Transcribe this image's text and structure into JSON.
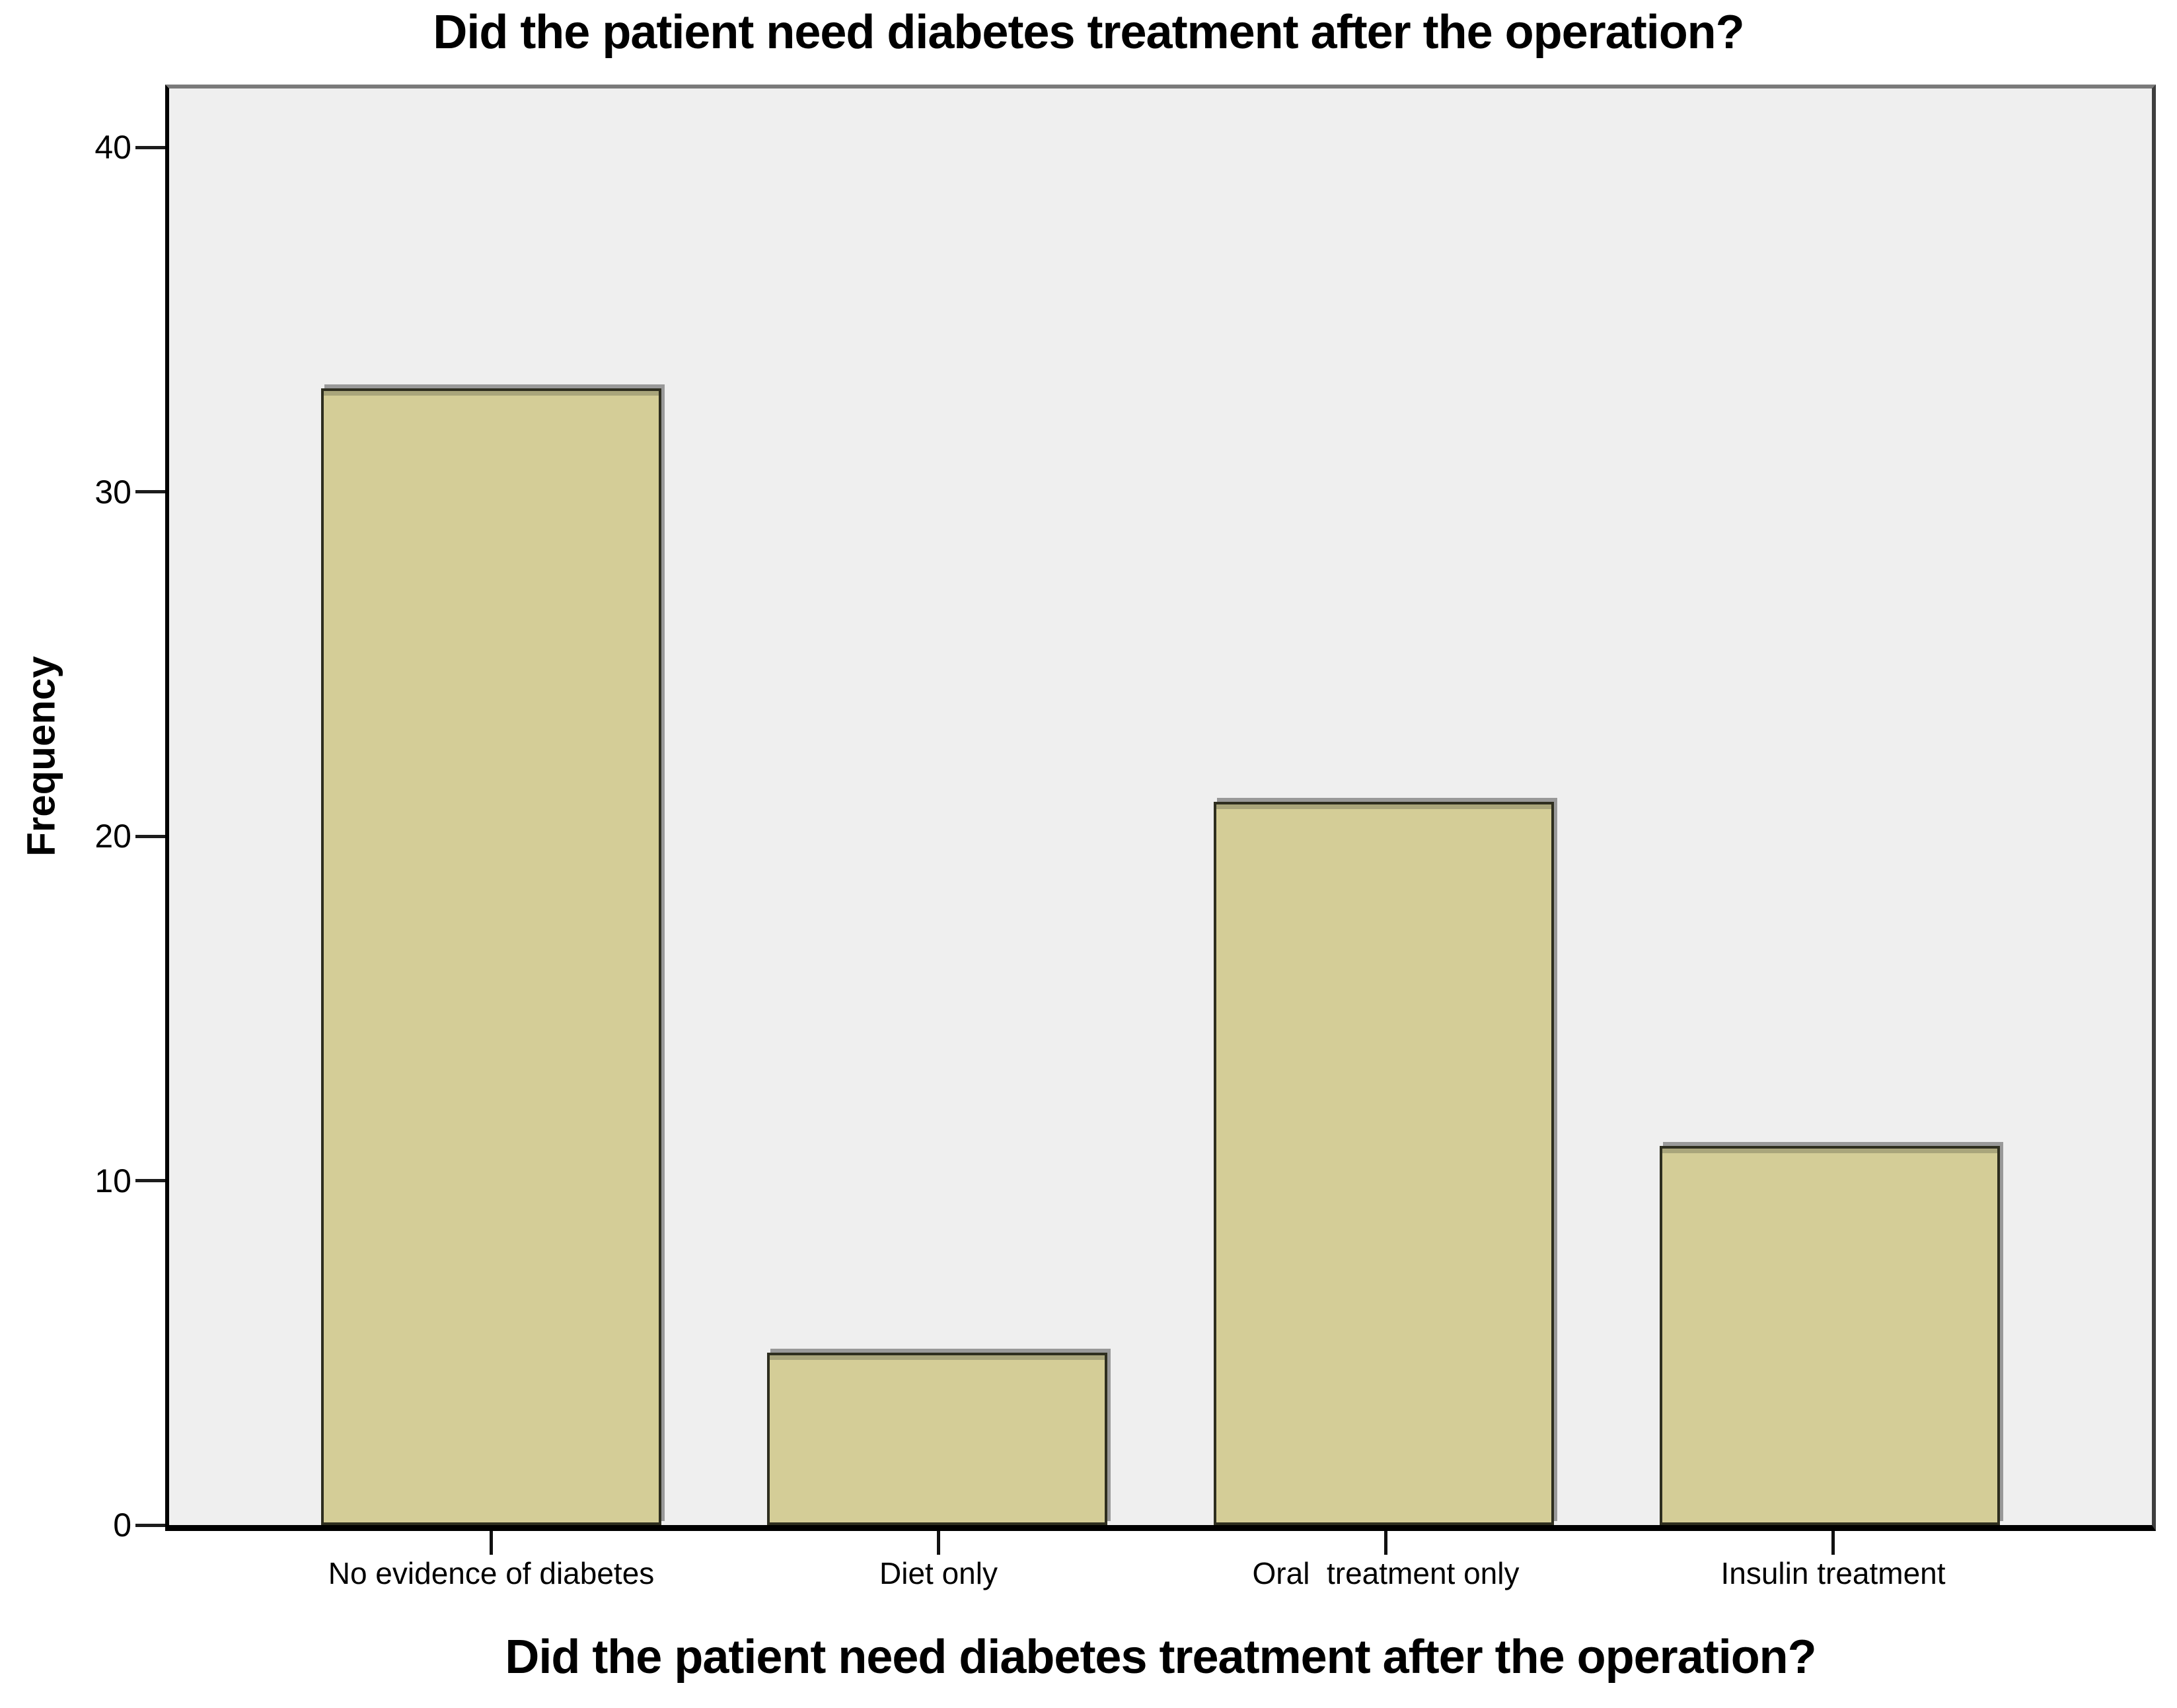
{
  "chart_data": {
    "type": "bar",
    "title": "Did the patient need diabetes treatment after the operation?",
    "xlabel": "Did the patient need diabetes treatment after the operation?",
    "ylabel": "Frequency",
    "categories": [
      "No evidence of diabetes",
      "Diet only",
      "Oral  treatment only",
      "Insulin treatment"
    ],
    "values": [
      33,
      5,
      21,
      11
    ],
    "yticks": [
      0,
      10,
      20,
      30,
      40
    ],
    "ylim": [
      0,
      41.8
    ],
    "grid": false,
    "legend": false,
    "colors": {
      "bar_fill": "#d4cd97",
      "bar_top_band": "#a9a57b",
      "bar_border": "#2e2e1f",
      "bar_shadow": "#999999",
      "plot_background": "#efefef",
      "frame_top": "#7a7a7a",
      "frame_right": "#3e3e3e",
      "axis_black": "#000000"
    }
  }
}
